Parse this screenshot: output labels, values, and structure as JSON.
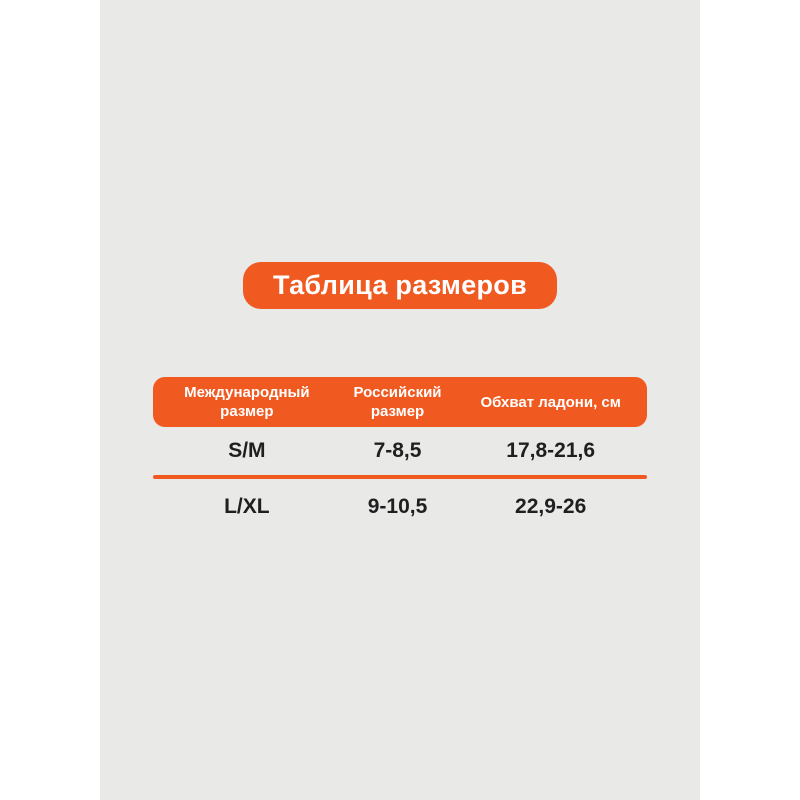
{
  "colors": {
    "page_background": "#FFFFFF",
    "panel_background": "#E9E9E8",
    "accent_orange": "#F0591F",
    "header_text": "#FFFFFF",
    "body_text": "#1F1F1F"
  },
  "title_badge": {
    "label": "Таблица размеров"
  },
  "chart_data": {
    "type": "table",
    "title": "Таблица размеров",
    "columns": [
      "Международный размер",
      "Российский размер",
      "Обхват ладони, см"
    ],
    "rows": [
      [
        "S/M",
        "7-8,5",
        "17,8-21,6"
      ],
      [
        "L/XL",
        "9-10,5",
        "22,9-26"
      ]
    ]
  }
}
